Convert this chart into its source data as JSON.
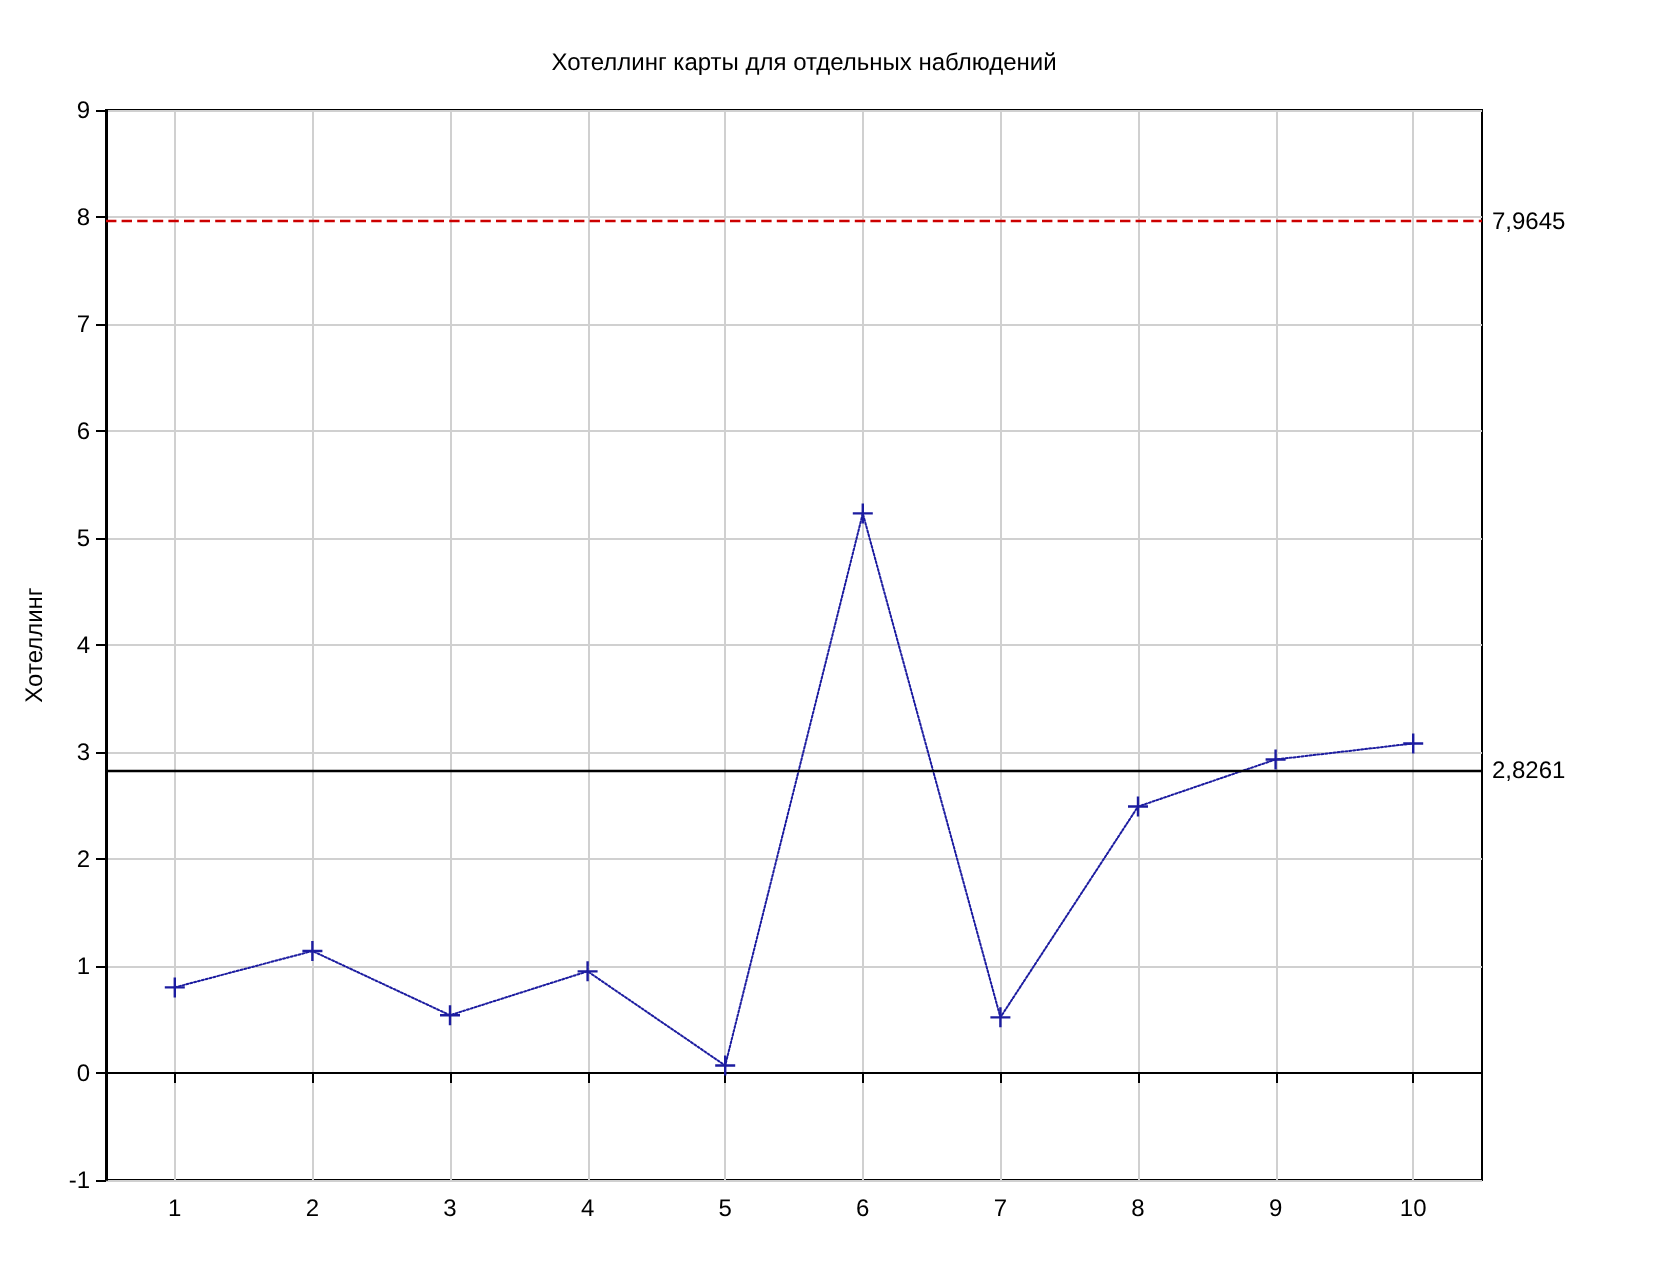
{
  "chart_data": {
    "type": "line",
    "title": "Хотеллинг карты для отдельных наблюдений",
    "ylabel": "Хотеллинг",
    "x": [
      1,
      2,
      3,
      4,
      5,
      6,
      7,
      8,
      9,
      10
    ],
    "series": [
      {
        "color": "#1c1ca0",
        "values": [
          0.8,
          1.14,
          0.54,
          0.95,
          0.07,
          5.23,
          0.52,
          2.49,
          2.93,
          3.08
        ]
      }
    ],
    "xlim": [
      0.5,
      10.5
    ],
    "xticks": [
      1,
      2,
      3,
      4,
      5,
      6,
      7,
      8,
      9,
      10
    ],
    "ylim": [
      -1,
      9
    ],
    "yticks": [
      -1,
      0,
      1,
      2,
      3,
      4,
      5,
      6,
      7,
      8,
      9
    ],
    "ref_lines": [
      {
        "axis": "y",
        "value": 7.9645,
        "label": "7,9645",
        "color": "#cc0000",
        "line_style": "dashed"
      },
      {
        "axis": "y",
        "value": 2.8261,
        "label": "2,8261",
        "color": "#000000",
        "line_style": "solid"
      }
    ],
    "grid": true,
    "marker": "cross",
    "line_style": "dotted"
  }
}
